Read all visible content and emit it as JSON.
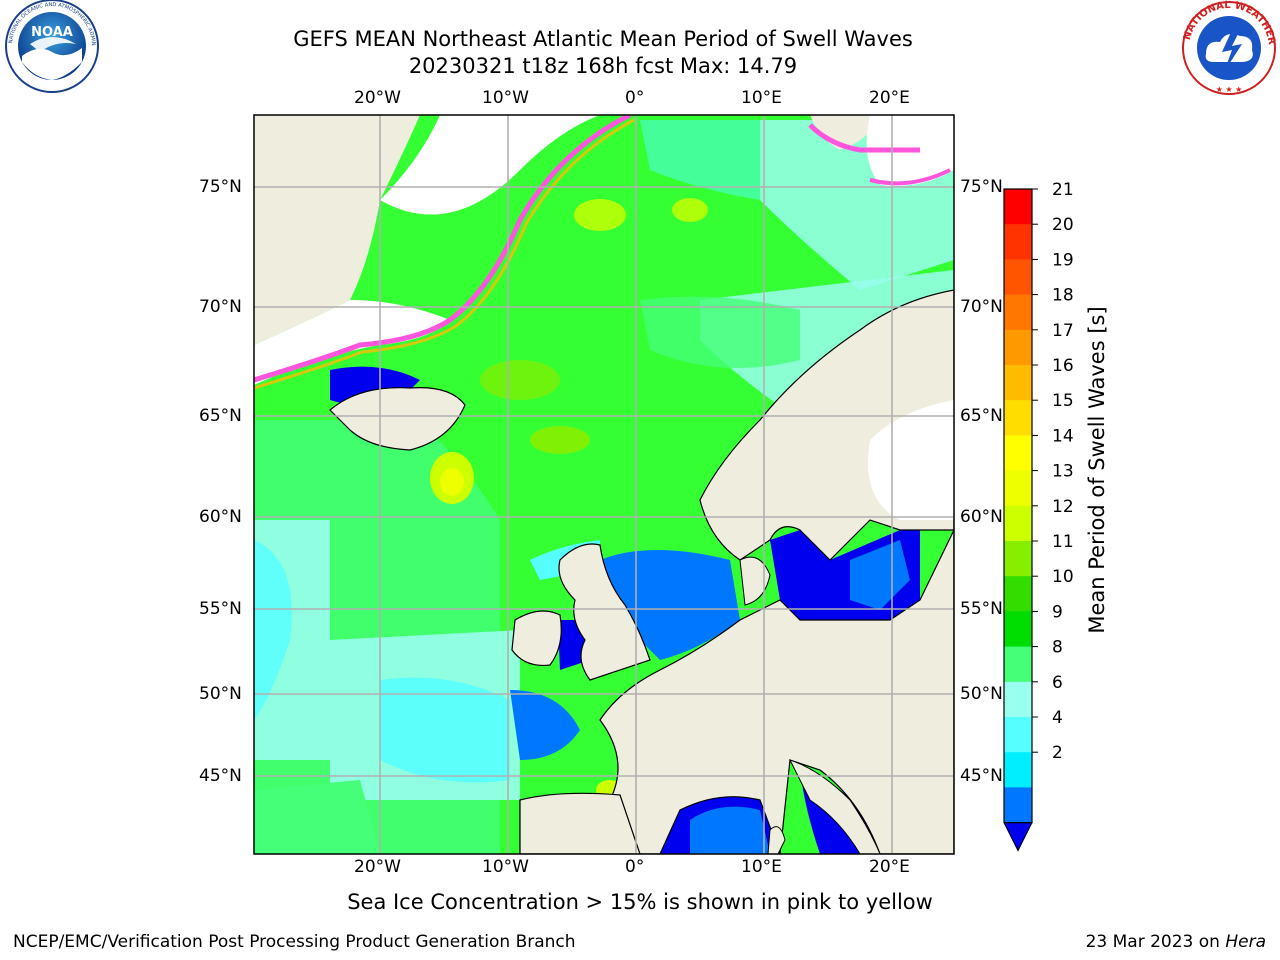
{
  "header": {
    "title_line1": "GEFS MEAN Northeast Atlantic Mean Period of Swell Waves",
    "title_line2": "20230321 t18z 168h fcst   Max: 14.79"
  },
  "logos": {
    "left": {
      "ring_text": "NATIONAL OCEANIC AND ATMOSPHERIC ADMINISTRATION · U.S. DEPARTMENT OF COMMERCE",
      "center": "NOAA"
    },
    "right": {
      "ring_text": "NATIONAL WEATHER SERVICE"
    }
  },
  "map": {
    "lon_labels": [
      "20°W",
      "10°W",
      "0°",
      "10°E",
      "20°E"
    ],
    "lat_labels": [
      "75°N",
      "70°N",
      "65°N",
      "60°N",
      "55°N",
      "50°N",
      "45°N"
    ],
    "colors": {
      "ocean_base": "#33ff33",
      "land": "#efedde",
      "ice_free": "#ffffff",
      "coast": "#000000",
      "grid": "#b0b0b0"
    }
  },
  "colorbar": {
    "label": "Mean Period of Swell Waves [s]",
    "ticks": [
      "21",
      "20",
      "19",
      "18",
      "17",
      "16",
      "15",
      "14",
      "13",
      "12",
      "11",
      "10",
      "9",
      "8",
      "6",
      "4",
      "2"
    ],
    "colors": [
      "#ff0000",
      "#ff3300",
      "#ff5500",
      "#ff7700",
      "#ff9900",
      "#ffbb00",
      "#ffdd00",
      "#ffff00",
      "#eeff00",
      "#ccff00",
      "#88ee00",
      "#33dd00",
      "#00dd00",
      "#44ff77",
      "#99ffee",
      "#55ffff",
      "#00eeff",
      "#0077ff"
    ],
    "under_color": "#0000ee"
  },
  "note": "Sea Ice Concentration > 15% is shown in pink to yellow",
  "footer": {
    "left": "NCEP/EMC/Verification Post Processing Product Generation Branch",
    "right_date": "23 Mar 2023 on ",
    "right_machine": "Hera"
  }
}
